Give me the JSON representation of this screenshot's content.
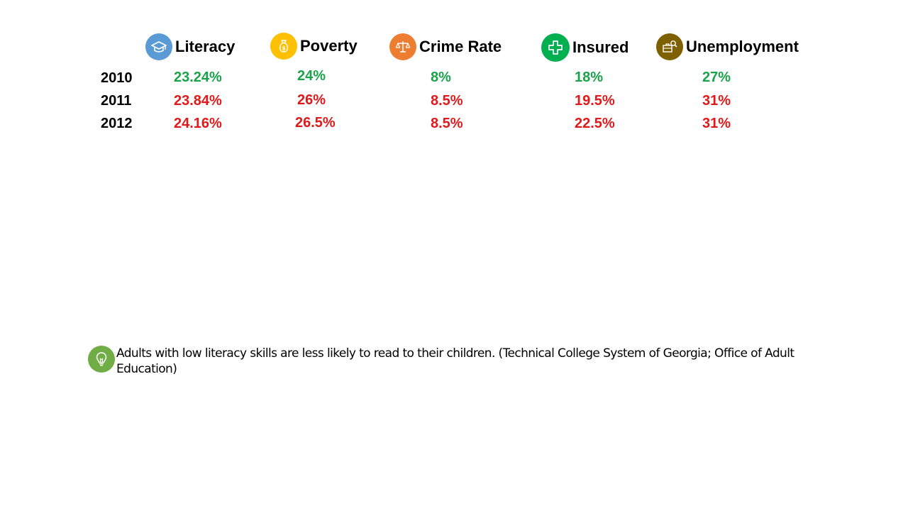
{
  "colors": {
    "good": "#1aa34a",
    "bad": "#e0191a",
    "literacy_icon": "#5b9bd5",
    "poverty_icon": "#ffc000",
    "crime_icon": "#ed7d31",
    "insured_icon": "#00b050",
    "unemployment_icon": "#7f6000",
    "note_icon": "#70ad47"
  },
  "columns": [
    {
      "label": "Literacy",
      "icon": "graduation-cap-icon"
    },
    {
      "label": "Poverty",
      "icon": "money-bag-icon"
    },
    {
      "label": "Crime Rate",
      "icon": "scales-icon"
    },
    {
      "label": "Insured",
      "icon": "medical-cross-icon"
    },
    {
      "label": "Unemployment",
      "icon": "job-search-icon"
    }
  ],
  "rows": [
    {
      "year": "2010",
      "values": [
        "23.24%",
        "24%",
        "8%",
        "18%",
        "27%"
      ],
      "status": [
        "good",
        "good",
        "good",
        "good",
        "good"
      ]
    },
    {
      "year": "2011",
      "values": [
        "23.84%",
        "26%",
        "8.5%",
        "19.5%",
        "31%"
      ],
      "status": [
        "bad",
        "bad",
        "bad",
        "bad",
        "bad"
      ]
    },
    {
      "year": "2012",
      "values": [
        "24.16%",
        "26.5%",
        "8.5%",
        "22.5%",
        "31%"
      ],
      "status": [
        "bad",
        "bad",
        "bad",
        "bad",
        "bad"
      ]
    }
  ],
  "note": {
    "icon": "lightbulb-icon",
    "text": "Adults with low literacy skills are less likely to read to their children. (Technical College System of Georgia; Office of Adult Education)"
  }
}
